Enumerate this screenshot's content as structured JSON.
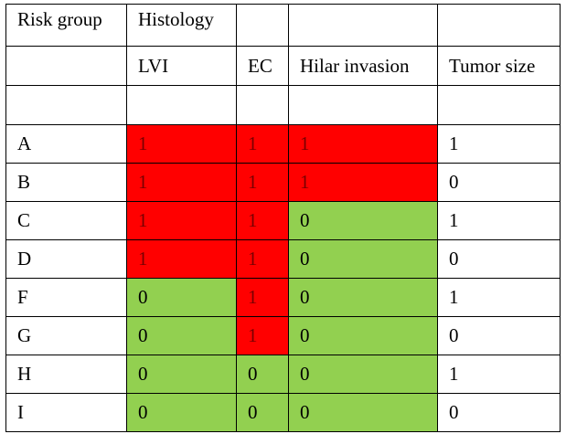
{
  "table": {
    "header_row_1": [
      "Risk group",
      "Histology",
      "",
      "",
      ""
    ],
    "header_row_2": [
      "",
      "LVI",
      "EC",
      "Hilar invasion",
      "Tumor size"
    ],
    "colors": {
      "positive": "#ff0000",
      "negative": "#92d050"
    },
    "rows": [
      {
        "group": "A",
        "lvi": "1",
        "ec": "1",
        "hilar": "1",
        "size": "1"
      },
      {
        "group": "B",
        "lvi": "1",
        "ec": "1",
        "hilar": "1",
        "size": "0"
      },
      {
        "group": "C",
        "lvi": "1",
        "ec": "1",
        "hilar": "0",
        "size": "1"
      },
      {
        "group": "D",
        "lvi": "1",
        "ec": "1",
        "hilar": "0",
        "size": "0"
      },
      {
        "group": "F",
        "lvi": "0",
        "ec": "1",
        "hilar": "0",
        "size": "1"
      },
      {
        "group": "G",
        "lvi": "0",
        "ec": "1",
        "hilar": "0",
        "size": "0"
      },
      {
        "group": "H",
        "lvi": "0",
        "ec": "0",
        "hilar": "0",
        "size": "1"
      },
      {
        "group": "I",
        "lvi": "0",
        "ec": "0",
        "hilar": "0",
        "size": "0"
      }
    ]
  }
}
